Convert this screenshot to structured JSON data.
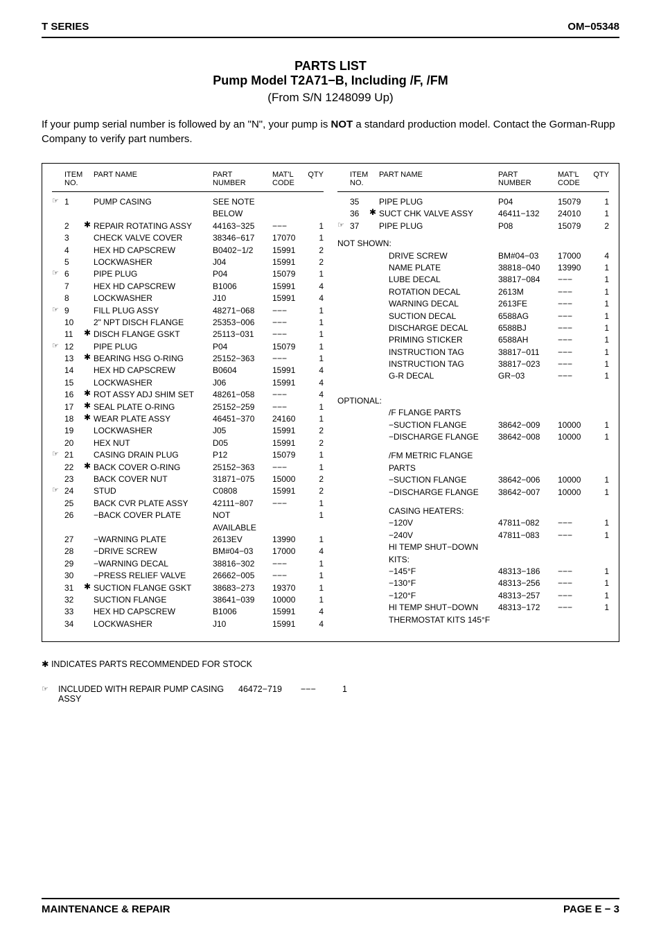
{
  "header": {
    "left": "T SERIES",
    "right": "OM−05348"
  },
  "title": {
    "line1": "PARTS LIST",
    "line2": "Pump Model T2A71−B, Including /F, /FM",
    "line3": "(From S/N 1248099 Up)"
  },
  "intro": {
    "pre": "If your pump serial number is followed by an \"N\", your pump is ",
    "bold": "NOT",
    "post": " a standard production model. Contact the Gorman-Rupp Company to verify part numbers."
  },
  "thead": {
    "item": "ITEM NO.",
    "name": "PART NAME",
    "part": "PART NUMBER",
    "matl": "MAT'L CODE",
    "qty": "QTY"
  },
  "left_rows": [
    {
      "mark": "☞",
      "no": "1",
      "star": "",
      "name": "PUMP CASING",
      "part": "SEE NOTE BELOW",
      "matl": "",
      "qty": ""
    },
    {
      "mark": "",
      "no": "2",
      "star": "✱",
      "name": "REPAIR ROTATING ASSY",
      "part": "44163−325",
      "matl": "−−−",
      "qty": "1"
    },
    {
      "mark": "",
      "no": "3",
      "star": "",
      "name": "CHECK VALVE COVER",
      "part": "38346−617",
      "matl": "17070",
      "qty": "1"
    },
    {
      "mark": "",
      "no": "4",
      "star": "",
      "name": "HEX HD CAPSCREW",
      "part": "B0402−1/2",
      "matl": "15991",
      "qty": "2"
    },
    {
      "mark": "",
      "no": "5",
      "star": "",
      "name": "LOCKWASHER",
      "part": "J04",
      "matl": "15991",
      "qty": "2"
    },
    {
      "mark": "☞",
      "no": "6",
      "star": "",
      "name": "PIPE PLUG",
      "part": "P04",
      "matl": "15079",
      "qty": "1"
    },
    {
      "mark": "",
      "no": "7",
      "star": "",
      "name": "HEX HD CAPSCREW",
      "part": "B1006",
      "matl": "15991",
      "qty": "4"
    },
    {
      "mark": "",
      "no": "8",
      "star": "",
      "name": "LOCKWASHER",
      "part": "J10",
      "matl": "15991",
      "qty": "4"
    },
    {
      "mark": "☞",
      "no": "9",
      "star": "",
      "name": "FILL PLUG ASSY",
      "part": "48271−068",
      "matl": "−−−",
      "qty": "1"
    },
    {
      "mark": "",
      "no": "10",
      "star": "",
      "name": "2\" NPT DISCH FLANGE",
      "part": "25353−006",
      "matl": "−−−",
      "qty": "1"
    },
    {
      "mark": "",
      "no": "11",
      "star": "✱",
      "name": "DISCH FLANGE GSKT",
      "part": "25113−031",
      "matl": "−−−",
      "qty": "1"
    },
    {
      "mark": "☞",
      "no": "12",
      "star": "",
      "name": "PIPE PLUG",
      "part": "P04",
      "matl": "15079",
      "qty": "1"
    },
    {
      "mark": "",
      "no": "13",
      "star": "✱",
      "name": "BEARING HSG O-RING",
      "part": "25152−363",
      "matl": "−−−",
      "qty": "1"
    },
    {
      "mark": "",
      "no": "14",
      "star": "",
      "name": "HEX HD CAPSCREW",
      "part": "B0604",
      "matl": "15991",
      "qty": "4"
    },
    {
      "mark": "",
      "no": "15",
      "star": "",
      "name": "LOCKWASHER",
      "part": "J06",
      "matl": "15991",
      "qty": "4"
    },
    {
      "mark": "",
      "no": "16",
      "star": "✱",
      "name": "ROT ASSY ADJ SHIM SET",
      "part": "48261−058",
      "matl": "−−−",
      "qty": "4"
    },
    {
      "mark": "",
      "no": "17",
      "star": "✱",
      "name": "SEAL PLATE O-RING",
      "part": "25152−259",
      "matl": "−−−",
      "qty": "1"
    },
    {
      "mark": "",
      "no": "18",
      "star": "✱",
      "name": "WEAR PLATE ASSY",
      "part": "46451−370",
      "matl": "24160",
      "qty": "1"
    },
    {
      "mark": "",
      "no": "19",
      "star": "",
      "name": "LOCKWASHER",
      "part": "J05",
      "matl": "15991",
      "qty": "2"
    },
    {
      "mark": "",
      "no": "20",
      "star": "",
      "name": "HEX NUT",
      "part": "D05",
      "matl": "15991",
      "qty": "2"
    },
    {
      "mark": "☞",
      "no": "21",
      "star": "",
      "name": "CASING DRAIN PLUG",
      "part": "P12",
      "matl": "15079",
      "qty": "1"
    },
    {
      "mark": "",
      "no": "22",
      "star": "✱",
      "name": "BACK COVER O-RING",
      "part": "25152−363",
      "matl": "−−−",
      "qty": "1"
    },
    {
      "mark": "",
      "no": "23",
      "star": "",
      "name": "BACK COVER NUT",
      "part": "31871−075",
      "matl": "15000",
      "qty": "2"
    },
    {
      "mark": "☞",
      "no": "24",
      "star": "",
      "name": "STUD",
      "part": "C0808",
      "matl": "15991",
      "qty": "2"
    },
    {
      "mark": "",
      "no": "25",
      "star": "",
      "name": "BACK CVR PLATE ASSY",
      "part": "42111−807",
      "matl": "−−−",
      "qty": "1"
    },
    {
      "mark": "",
      "no": "26",
      "star": "",
      "name": "−BACK COVER PLATE",
      "part": "NOT AVAILABLE",
      "matl": "",
      "qty": "1"
    },
    {
      "mark": "",
      "no": "27",
      "star": "",
      "name": "−WARNING PLATE",
      "part": "2613EV",
      "matl": "13990",
      "qty": "1"
    },
    {
      "mark": "",
      "no": "28",
      "star": "",
      "name": "−DRIVE SCREW",
      "part": "BM#04−03",
      "matl": "17000",
      "qty": "4"
    },
    {
      "mark": "",
      "no": "29",
      "star": "",
      "name": "−WARNING DECAL",
      "part": "38816−302",
      "matl": "−−−",
      "qty": "1"
    },
    {
      "mark": "",
      "no": "30",
      "star": "",
      "name": "−PRESS RELIEF VALVE",
      "part": "26662−005",
      "matl": "−−−",
      "qty": "1"
    },
    {
      "mark": "",
      "no": "31",
      "star": "✱",
      "name": "SUCTION FLANGE GSKT",
      "part": "38683−273",
      "matl": "19370",
      "qty": "1"
    },
    {
      "mark": "",
      "no": "32",
      "star": "",
      "name": "SUCTION FLANGE",
      "part": "38641−039",
      "matl": "10000",
      "qty": "1"
    },
    {
      "mark": "",
      "no": "33",
      "star": "",
      "name": "HEX HD CAPSCREW",
      "part": "B1006",
      "matl": "15991",
      "qty": "4"
    },
    {
      "mark": "",
      "no": "34",
      "star": "",
      "name": "LOCKWASHER",
      "part": "J10",
      "matl": "15991",
      "qty": "4"
    }
  ],
  "right_rows": [
    {
      "mark": "",
      "no": "35",
      "star": "",
      "name": "PIPE PLUG",
      "part": "P04",
      "matl": "15079",
      "qty": "1"
    },
    {
      "mark": "",
      "no": "36",
      "star": "✱",
      "name": "SUCT CHK VALVE ASSY",
      "part": "46411−132",
      "matl": "24010",
      "qty": "1"
    },
    {
      "mark": "☞",
      "no": "37",
      "star": "",
      "name": "PIPE PLUG",
      "part": "P08",
      "matl": "15079",
      "qty": "2"
    },
    {
      "section": "NOT SHOWN:"
    },
    {
      "mark": "",
      "no": "",
      "star": "",
      "name": "DRIVE SCREW",
      "part": "BM#04−03",
      "matl": "17000",
      "qty": "4",
      "indent": true
    },
    {
      "mark": "",
      "no": "",
      "star": "",
      "name": "NAME PLATE",
      "part": "38818−040",
      "matl": "13990",
      "qty": "1",
      "indent": true
    },
    {
      "mark": "",
      "no": "",
      "star": "",
      "name": "LUBE DECAL",
      "part": "38817−084",
      "matl": "−−−",
      "qty": "1",
      "indent": true
    },
    {
      "mark": "",
      "no": "",
      "star": "",
      "name": "ROTATION DECAL",
      "part": "2613M",
      "matl": "−−−",
      "qty": "1",
      "indent": true
    },
    {
      "mark": "",
      "no": "",
      "star": "",
      "name": "WARNING DECAL",
      "part": "2613FE",
      "matl": "−−−",
      "qty": "1",
      "indent": true
    },
    {
      "mark": "",
      "no": "",
      "star": "",
      "name": "SUCTION DECAL",
      "part": "6588AG",
      "matl": "−−−",
      "qty": "1",
      "indent": true
    },
    {
      "mark": "",
      "no": "",
      "star": "",
      "name": "DISCHARGE DECAL",
      "part": "6588BJ",
      "matl": "−−−",
      "qty": "1",
      "indent": true
    },
    {
      "mark": "",
      "no": "",
      "star": "",
      "name": "PRIMING STICKER",
      "part": "6588AH",
      "matl": "−−−",
      "qty": "1",
      "indent": true
    },
    {
      "mark": "",
      "no": "",
      "star": "",
      "name": "INSTRUCTION TAG",
      "part": "38817−011",
      "matl": "−−−",
      "qty": "1",
      "indent": true
    },
    {
      "mark": "",
      "no": "",
      "star": "",
      "name": "INSTRUCTION TAG",
      "part": "38817−023",
      "matl": "−−−",
      "qty": "1",
      "indent": true
    },
    {
      "mark": "",
      "no": "",
      "star": "",
      "name": "G-R DECAL",
      "part": "GR−03",
      "matl": "−−−",
      "qty": "1",
      "indent": true
    },
    {
      "spacer": true
    },
    {
      "section": "OPTIONAL:"
    },
    {
      "mark": "",
      "no": "",
      "star": "",
      "name": "/F FLANGE PARTS",
      "part": "",
      "matl": "",
      "qty": "",
      "indent": true
    },
    {
      "mark": "",
      "no": "",
      "star": "",
      "name": "−SUCTION FLANGE",
      "part": "38642−009",
      "matl": "10000",
      "qty": "1",
      "indent": true
    },
    {
      "mark": "",
      "no": "",
      "star": "",
      "name": "−DISCHARGE FLANGE",
      "part": "38642−008",
      "matl": "10000",
      "qty": "1",
      "indent": true
    },
    {
      "spacer": true
    },
    {
      "mark": "",
      "no": "",
      "star": "",
      "name": "/FM METRIC FLANGE PARTS",
      "part": "",
      "matl": "",
      "qty": "",
      "indent": true
    },
    {
      "mark": "",
      "no": "",
      "star": "",
      "name": "−SUCTION FLANGE",
      "part": "38642−006",
      "matl": "10000",
      "qty": "1",
      "indent": true
    },
    {
      "mark": "",
      "no": "",
      "star": "",
      "name": "−DISCHARGE FLANGE",
      "part": "38642−007",
      "matl": "10000",
      "qty": "1",
      "indent": true
    },
    {
      "spacer": true
    },
    {
      "mark": "",
      "no": "",
      "star": "",
      "name": "CASING HEATERS:",
      "part": "",
      "matl": "",
      "qty": "",
      "indent": true
    },
    {
      "mark": "",
      "no": "",
      "star": "",
      "name": "−120V",
      "part": "47811−082",
      "matl": "−−−",
      "qty": "1",
      "indent": true
    },
    {
      "mark": "",
      "no": "",
      "star": "",
      "name": "−240V",
      "part": "47811−083",
      "matl": "−−−",
      "qty": "1",
      "indent": true
    },
    {
      "mark": "",
      "no": "",
      "star": "",
      "name": "HI TEMP SHUT−DOWN KITS:",
      "part": "",
      "matl": "",
      "qty": "",
      "indent": true
    },
    {
      "mark": "",
      "no": "",
      "star": "",
      "name": "−145°F",
      "part": "48313−186",
      "matl": "−−−",
      "qty": "1",
      "indent": true
    },
    {
      "mark": "",
      "no": "",
      "star": "",
      "name": "−130°F",
      "part": "48313−256",
      "matl": "−−−",
      "qty": "1",
      "indent": true
    },
    {
      "mark": "",
      "no": "",
      "star": "",
      "name": "−120°F",
      "part": "48313−257",
      "matl": "−−−",
      "qty": "1",
      "indent": true
    },
    {
      "mark": "",
      "no": "",
      "star": "",
      "name": "HI TEMP SHUT−DOWN",
      "part": "48313−172",
      "matl": "−−−",
      "qty": "1",
      "indent": true
    },
    {
      "mark": "",
      "no": "",
      "star": "",
      "name": "THERMOSTAT KITS 145°F",
      "part": "",
      "matl": "",
      "qty": "",
      "indent": true
    }
  ],
  "footnotes": {
    "star": "✱ INDICATES PARTS RECOMMENDED FOR STOCK",
    "mark": "☞",
    "repair_text": "INCLUDED WITH REPAIR PUMP CASING ASSY",
    "repair_part": "46472−719",
    "repair_matl": "−−−",
    "repair_qty": "1"
  },
  "footer": {
    "left": "MAINTENANCE & REPAIR",
    "right": "PAGE E − 3"
  }
}
